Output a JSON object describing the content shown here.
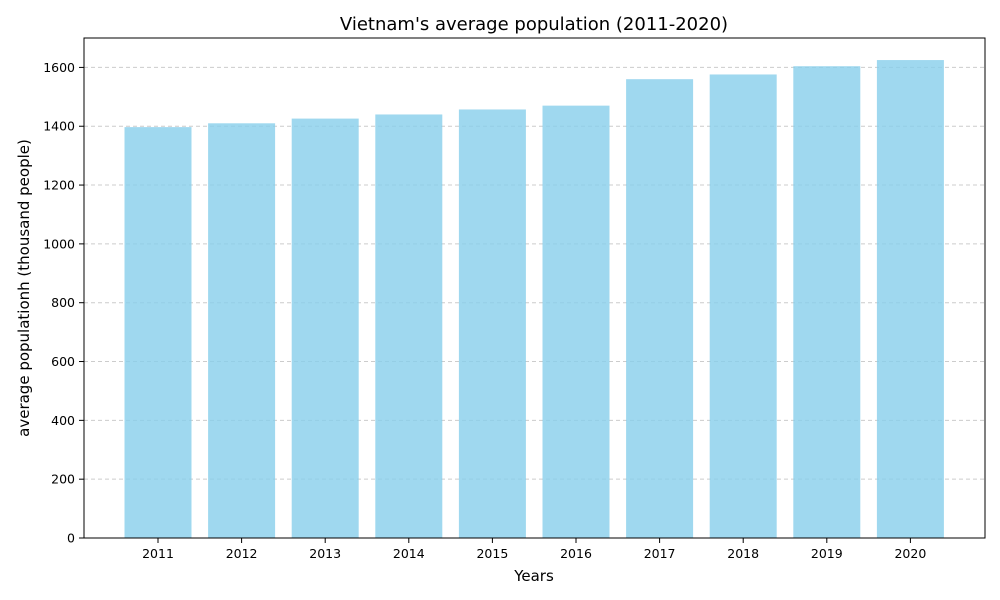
{
  "chart_data": {
    "type": "bar",
    "title": "Vietnam's average population (2011-2020)",
    "xlabel": "Years",
    "ylabel": "average populationh (thousand people)",
    "categories": [
      "2011",
      "2012",
      "2013",
      "2014",
      "2015",
      "2016",
      "2017",
      "2018",
      "2019",
      "2020"
    ],
    "values": [
      1397,
      1410,
      1426,
      1440,
      1457,
      1470,
      1560,
      1576,
      1604,
      1625
    ],
    "ylim": [
      0,
      1700
    ],
    "yticks": [
      0,
      200,
      400,
      600,
      800,
      1000,
      1200,
      1400,
      1600
    ],
    "grid": "y-dashed",
    "bar_color": "#87CEEB"
  }
}
